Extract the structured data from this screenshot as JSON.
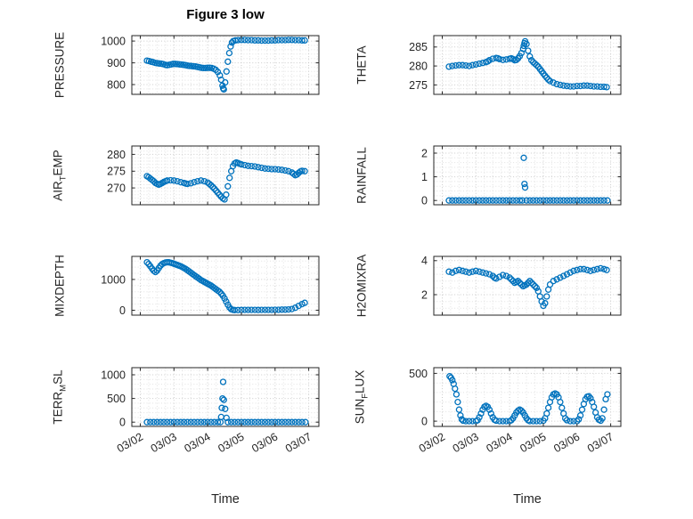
{
  "figure": {
    "title": "Figure 3 low",
    "xlabel": "Time",
    "marker_color": "#0072BD",
    "axis_color": "#262626",
    "grid_major_color": "#cbcbcb",
    "grid_minor_color": "#e2e2e2",
    "x_axis": {
      "lim": [
        -0.25,
        5.3
      ],
      "ticks": [
        0,
        1,
        2,
        3,
        4,
        5
      ],
      "labels": [
        "03/02",
        "03/03",
        "03/04",
        "03/05",
        "03/06",
        "03/07"
      ]
    }
  },
  "chart_data": [
    {
      "type": "scatter",
      "ylabel": "PRESSURE",
      "ylim": [
        755,
        1025
      ],
      "yticks": [
        800,
        900,
        1000
      ],
      "x": [
        0.2,
        0.26,
        0.32,
        0.38,
        0.44,
        0.5,
        0.56,
        0.62,
        0.68,
        0.74,
        0.8,
        0.86,
        0.92,
        0.98,
        1.04,
        1.1,
        1.16,
        1.22,
        1.28,
        1.34,
        1.4,
        1.46,
        1.52,
        1.58,
        1.64,
        1.7,
        1.76,
        1.82,
        1.88,
        1.94,
        2.0,
        2.06,
        2.12,
        2.18,
        2.24,
        2.3,
        2.36,
        2.4,
        2.44,
        2.46,
        2.48,
        2.52,
        2.56,
        2.6,
        2.64,
        2.68,
        2.72,
        2.76,
        2.82,
        2.9,
        3.0,
        3.1,
        3.2,
        3.3,
        3.4,
        3.5,
        3.6,
        3.7,
        3.8,
        3.9,
        4.0,
        4.1,
        4.2,
        4.3,
        4.4,
        4.5,
        4.6,
        4.7,
        4.8,
        4.88
      ],
      "y": [
        910,
        908,
        905,
        903,
        900,
        898,
        897,
        896,
        894,
        891,
        889,
        891,
        893,
        895,
        895,
        894,
        893,
        892,
        891,
        889,
        887,
        886,
        885,
        884,
        883,
        881,
        879,
        877,
        876,
        876,
        877,
        877,
        876,
        873,
        868,
        858,
        842,
        822,
        795,
        783,
        778,
        810,
        860,
        905,
        945,
        975,
        993,
        1000,
        1003,
        1004,
        1005,
        1005,
        1004,
        1004,
        1003,
        1003,
        1002,
        1002,
        1002,
        1003,
        1003,
        1004,
        1004,
        1004,
        1005,
        1005,
        1004,
        1004,
        1003,
        1003
      ]
    },
    {
      "type": "scatter",
      "ylabel": "THETA",
      "ylim": [
        272.5,
        288
      ],
      "yticks": [
        275,
        280,
        285
      ],
      "x": [
        0.2,
        0.3,
        0.4,
        0.5,
        0.6,
        0.7,
        0.8,
        0.9,
        1.0,
        1.1,
        1.2,
        1.3,
        1.35,
        1.4,
        1.5,
        1.6,
        1.65,
        1.7,
        1.8,
        1.9,
        2.0,
        2.05,
        2.1,
        2.15,
        2.2,
        2.25,
        2.3,
        2.35,
        2.4,
        2.42,
        2.44,
        2.46,
        2.5,
        2.55,
        2.6,
        2.65,
        2.7,
        2.75,
        2.8,
        2.85,
        2.9,
        2.95,
        3.0,
        3.05,
        3.1,
        3.15,
        3.2,
        3.3,
        3.4,
        3.5,
        3.6,
        3.7,
        3.8,
        3.9,
        4.0,
        4.1,
        4.2,
        4.3,
        4.4,
        4.5,
        4.6,
        4.7,
        4.8,
        4.88
      ],
      "y": [
        279.8,
        280.0,
        280.1,
        280.2,
        280.2,
        280.1,
        280.0,
        280.2,
        280.4,
        280.6,
        280.8,
        281.0,
        281.2,
        281.5,
        281.9,
        282.1,
        282.0,
        281.8,
        281.6,
        281.7,
        281.9,
        282.0,
        281.8,
        281.5,
        281.6,
        282.0,
        282.6,
        283.4,
        284.5,
        285.3,
        286.0,
        286.5,
        285.8,
        284.0,
        282.5,
        281.5,
        281.0,
        280.6,
        280.2,
        279.8,
        279.2,
        278.6,
        278.0,
        277.4,
        276.9,
        276.4,
        276.0,
        275.6,
        275.2,
        275.0,
        274.8,
        274.7,
        274.6,
        274.6,
        274.7,
        274.7,
        274.8,
        274.8,
        274.7,
        274.6,
        274.6,
        274.5,
        274.5,
        274.4
      ]
    },
    {
      "type": "scatter",
      "ylabel": "AIR_TEMP",
      "ylim": [
        265,
        282.5
      ],
      "yticks": [
        270,
        275,
        280
      ],
      "x": [
        0.2,
        0.25,
        0.3,
        0.35,
        0.4,
        0.45,
        0.5,
        0.55,
        0.6,
        0.65,
        0.7,
        0.75,
        0.8,
        0.9,
        1.0,
        1.1,
        1.2,
        1.3,
        1.35,
        1.4,
        1.5,
        1.6,
        1.7,
        1.8,
        1.9,
        2.0,
        2.05,
        2.1,
        2.15,
        2.2,
        2.25,
        2.3,
        2.35,
        2.4,
        2.45,
        2.5,
        2.55,
        2.6,
        2.65,
        2.7,
        2.75,
        2.8,
        2.85,
        2.9,
        2.95,
        3.0,
        3.1,
        3.2,
        3.3,
        3.4,
        3.5,
        3.6,
        3.7,
        3.8,
        3.9,
        4.0,
        4.1,
        4.2,
        4.3,
        4.4,
        4.5,
        4.55,
        4.6,
        4.65,
        4.7,
        4.75,
        4.8,
        4.88
      ],
      "y": [
        273.5,
        273.2,
        272.8,
        272.4,
        272.0,
        271.5,
        271.2,
        271.0,
        271.2,
        271.5,
        271.8,
        272.0,
        272.2,
        272.3,
        272.2,
        272.0,
        271.7,
        271.5,
        271.3,
        271.2,
        271.4,
        271.7,
        272.0,
        272.2,
        272.0,
        271.6,
        271.2,
        270.8,
        270.3,
        269.8,
        269.2,
        268.6,
        268.0,
        267.4,
        266.9,
        266.6,
        268.0,
        270.5,
        273.0,
        275.0,
        276.5,
        277.3,
        277.6,
        277.4,
        277.2,
        277.0,
        276.8,
        276.6,
        276.5,
        276.4,
        276.2,
        276.0,
        275.8,
        275.7,
        275.6,
        275.6,
        275.5,
        275.4,
        275.2,
        275.0,
        274.6,
        274.2,
        273.8,
        274.0,
        274.5,
        274.9,
        275.1,
        275.0
      ]
    },
    {
      "type": "scatter",
      "ylabel": "RAINFALL",
      "ylim": [
        -0.18,
        2.3
      ],
      "yticks": [
        0,
        1,
        2
      ],
      "x": [
        0.2,
        0.3,
        0.4,
        0.5,
        0.6,
        0.7,
        0.8,
        0.9,
        1.0,
        1.1,
        1.2,
        1.3,
        1.4,
        1.5,
        1.6,
        1.7,
        1.8,
        1.9,
        2.0,
        2.1,
        2.2,
        2.3,
        2.38,
        2.42,
        2.44,
        2.46,
        2.5,
        2.6,
        2.7,
        2.8,
        2.9,
        3.0,
        3.1,
        3.2,
        3.3,
        3.4,
        3.5,
        3.6,
        3.7,
        3.8,
        3.9,
        4.0,
        4.1,
        4.2,
        4.3,
        4.4,
        4.5,
        4.6,
        4.7,
        4.8,
        4.9
      ],
      "y": [
        0,
        0,
        0,
        0,
        0,
        0,
        0,
        0,
        0,
        0,
        0,
        0,
        0,
        0,
        0,
        0,
        0,
        0,
        0,
        0,
        0,
        0,
        0,
        1.8,
        0.7,
        0.55,
        0,
        0,
        0,
        0,
        0,
        0,
        0,
        0,
        0,
        0,
        0,
        0,
        0,
        0,
        0,
        0,
        0,
        0,
        0,
        0,
        0,
        0,
        0,
        0,
        0
      ]
    },
    {
      "type": "scatter",
      "ylabel": "MIXDEPTH",
      "ylim": [
        -160,
        1750
      ],
      "yticks": [
        0,
        1000
      ],
      "x": [
        0.2,
        0.25,
        0.3,
        0.35,
        0.4,
        0.45,
        0.5,
        0.55,
        0.6,
        0.65,
        0.7,
        0.75,
        0.8,
        0.85,
        0.9,
        0.95,
        1.0,
        1.05,
        1.1,
        1.15,
        1.2,
        1.25,
        1.3,
        1.35,
        1.4,
        1.45,
        1.5,
        1.55,
        1.6,
        1.65,
        1.7,
        1.75,
        1.8,
        1.85,
        1.9,
        1.95,
        2.0,
        2.05,
        2.1,
        2.15,
        2.2,
        2.25,
        2.3,
        2.35,
        2.4,
        2.45,
        2.5,
        2.55,
        2.6,
        2.65,
        2.7,
        2.75,
        2.8,
        2.9,
        3.0,
        3.1,
        3.2,
        3.3,
        3.4,
        3.5,
        3.6,
        3.7,
        3.8,
        3.9,
        4.0,
        4.1,
        4.2,
        4.3,
        4.4,
        4.5,
        4.6,
        4.7,
        4.8,
        4.88
      ],
      "y": [
        1560,
        1500,
        1430,
        1350,
        1280,
        1240,
        1290,
        1370,
        1450,
        1500,
        1530,
        1550,
        1560,
        1555,
        1545,
        1530,
        1510,
        1490,
        1470,
        1450,
        1430,
        1400,
        1370,
        1340,
        1300,
        1260,
        1220,
        1180,
        1140,
        1100,
        1060,
        1020,
        980,
        950,
        920,
        890,
        860,
        830,
        800,
        760,
        720,
        680,
        640,
        600,
        540,
        470,
        380,
        280,
        180,
        90,
        30,
        10,
        5,
        5,
        8,
        10,
        10,
        12,
        10,
        8,
        10,
        12,
        10,
        12,
        15,
        15,
        18,
        20,
        25,
        40,
        80,
        140,
        200,
        240
      ]
    },
    {
      "type": "scatter",
      "ylabel": "H2OMIXRA",
      "ylim": [
        0.8,
        4.25
      ],
      "yticks": [
        2,
        4
      ],
      "x": [
        0.2,
        0.3,
        0.4,
        0.5,
        0.6,
        0.7,
        0.8,
        0.9,
        1.0,
        1.1,
        1.2,
        1.3,
        1.4,
        1.5,
        1.55,
        1.6,
        1.7,
        1.8,
        1.9,
        2.0,
        2.05,
        2.1,
        2.15,
        2.2,
        2.25,
        2.3,
        2.35,
        2.4,
        2.45,
        2.5,
        2.55,
        2.6,
        2.65,
        2.7,
        2.75,
        2.8,
        2.85,
        2.9,
        2.95,
        3.0,
        3.05,
        3.1,
        3.15,
        3.2,
        3.3,
        3.4,
        3.5,
        3.6,
        3.7,
        3.8,
        3.9,
        4.0,
        4.1,
        4.2,
        4.3,
        4.4,
        4.5,
        4.6,
        4.7,
        4.8,
        4.88
      ],
      "y": [
        3.35,
        3.3,
        3.4,
        3.45,
        3.4,
        3.35,
        3.3,
        3.35,
        3.4,
        3.35,
        3.3,
        3.25,
        3.2,
        3.1,
        3.0,
        2.95,
        3.05,
        3.15,
        3.1,
        3.0,
        2.9,
        2.8,
        2.7,
        2.75,
        2.8,
        2.7,
        2.6,
        2.5,
        2.55,
        2.6,
        2.7,
        2.8,
        2.7,
        2.6,
        2.5,
        2.4,
        2.2,
        1.9,
        1.6,
        1.35,
        1.5,
        1.9,
        2.3,
        2.6,
        2.8,
        2.9,
        3.0,
        3.1,
        3.2,
        3.3,
        3.4,
        3.45,
        3.5,
        3.5,
        3.45,
        3.4,
        3.45,
        3.5,
        3.55,
        3.5,
        3.45
      ]
    },
    {
      "type": "scatter",
      "ylabel": "TERR_MSL",
      "ylim": [
        -90,
        1150
      ],
      "yticks": [
        0,
        500,
        1000
      ],
      "x": [
        0.2,
        0.3,
        0.4,
        0.5,
        0.6,
        0.7,
        0.8,
        0.9,
        1.0,
        1.1,
        1.2,
        1.3,
        1.4,
        1.5,
        1.6,
        1.7,
        1.8,
        1.9,
        2.0,
        2.1,
        2.2,
        2.3,
        2.38,
        2.4,
        2.42,
        2.44,
        2.46,
        2.48,
        2.52,
        2.56,
        2.6,
        2.7,
        2.8,
        2.9,
        3.0,
        3.1,
        3.2,
        3.3,
        3.4,
        3.5,
        3.6,
        3.7,
        3.8,
        3.9,
        4.0,
        4.1,
        4.2,
        4.3,
        4.4,
        4.5,
        4.6,
        4.7,
        4.8,
        4.9
      ],
      "y": [
        0,
        0,
        0,
        0,
        0,
        0,
        0,
        0,
        0,
        0,
        0,
        0,
        0,
        0,
        0,
        0,
        0,
        0,
        0,
        0,
        0,
        0,
        0,
        110,
        300,
        500,
        850,
        470,
        280,
        90,
        0,
        0,
        0,
        0,
        0,
        0,
        0,
        0,
        0,
        0,
        0,
        0,
        0,
        0,
        0,
        0,
        0,
        0,
        0,
        0,
        0,
        0,
        0,
        0
      ]
    },
    {
      "type": "scatter",
      "ylabel": "SUN_FLUX",
      "ylim": [
        -55,
        560
      ],
      "yticks": [
        0,
        500
      ],
      "x": [
        0.22,
        0.26,
        0.3,
        0.34,
        0.38,
        0.42,
        0.46,
        0.5,
        0.54,
        0.58,
        0.62,
        0.7,
        0.8,
        0.9,
        1.0,
        1.05,
        1.1,
        1.15,
        1.2,
        1.25,
        1.3,
        1.35,
        1.4,
        1.45,
        1.5,
        1.55,
        1.6,
        1.7,
        1.8,
        1.9,
        2.0,
        2.05,
        2.1,
        2.15,
        2.2,
        2.25,
        2.3,
        2.35,
        2.4,
        2.45,
        2.5,
        2.55,
        2.6,
        2.7,
        2.8,
        2.9,
        3.0,
        3.05,
        3.1,
        3.15,
        3.2,
        3.25,
        3.3,
        3.35,
        3.4,
        3.45,
        3.5,
        3.55,
        3.6,
        3.65,
        3.7,
        3.8,
        3.9,
        4.0,
        4.05,
        4.1,
        4.15,
        4.2,
        4.25,
        4.3,
        4.35,
        4.4,
        4.45,
        4.5,
        4.55,
        4.6,
        4.65,
        4.7,
        4.75,
        4.8,
        4.85,
        4.9
      ],
      "y": [
        470,
        455,
        430,
        390,
        340,
        280,
        200,
        120,
        60,
        20,
        5,
        0,
        0,
        0,
        0,
        10,
        40,
        80,
        120,
        150,
        160,
        150,
        120,
        80,
        40,
        15,
        5,
        0,
        0,
        0,
        0,
        10,
        30,
        60,
        90,
        110,
        120,
        110,
        90,
        60,
        30,
        10,
        0,
        0,
        0,
        0,
        5,
        30,
        80,
        140,
        200,
        250,
        280,
        290,
        280,
        250,
        200,
        140,
        80,
        30,
        10,
        0,
        0,
        0,
        20,
        60,
        120,
        180,
        230,
        255,
        260,
        240,
        200,
        150,
        90,
        40,
        15,
        5,
        30,
        120,
        230,
        280
      ]
    }
  ]
}
